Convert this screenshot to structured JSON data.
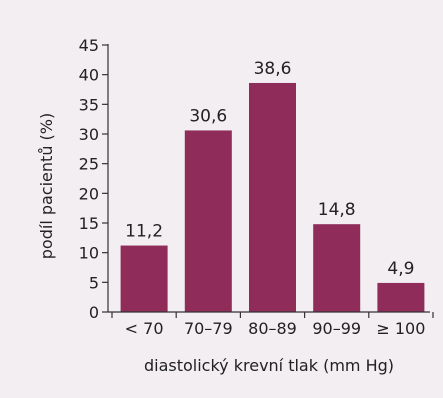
{
  "chart_data": {
    "type": "bar",
    "categories": [
      "< 70",
      "70–79",
      "80–89",
      "90–99",
      "≥ 100"
    ],
    "values": [
      11.2,
      30.6,
      38.6,
      14.8,
      4.9
    ],
    "value_labels": [
      "11,2",
      "30,6",
      "38,6",
      "14,8",
      "4,9"
    ],
    "xlabel": "diastolický krevní tlak (mm Hg)",
    "ylabel": "podíl pacientů (%)",
    "ylim": [
      0,
      45
    ],
    "yticks": [
      0,
      5,
      10,
      15,
      20,
      25,
      30,
      35,
      40,
      45
    ],
    "grid": false,
    "colors": {
      "bar": "#8f2c5a",
      "axis": "#333333",
      "background": "#f2eef2"
    }
  }
}
